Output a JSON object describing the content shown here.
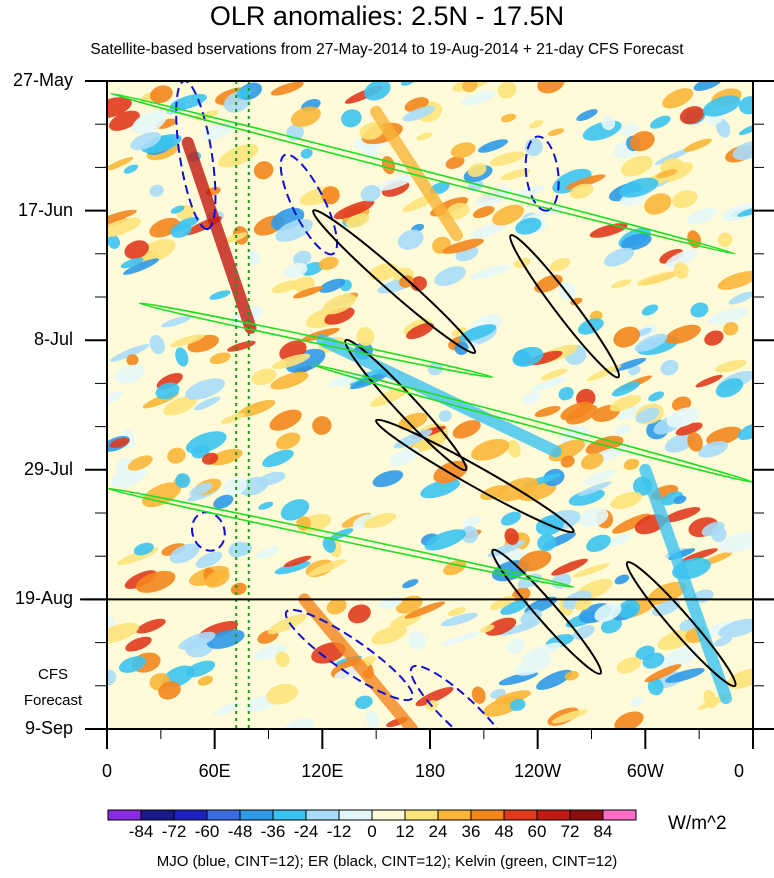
{
  "chart_data": {
    "type": "heatmap",
    "title": "OLR anomalies: 2.5N - 17.5N",
    "subtitle": "Satellite-based bservations from 27-May-2014 to 19-Aug-2014 + 21-day CFS Forecast",
    "x_ticks": [
      "0",
      "60E",
      "120E",
      "180",
      "120W",
      "60W",
      "0"
    ],
    "x_tick_values": [
      0,
      60,
      120,
      180,
      240,
      300,
      360
    ],
    "y_ticks": [
      "27-May",
      "17-Jun",
      "8-Jul",
      "29-Jul",
      "19-Aug",
      "9-Sep"
    ],
    "y_tick_values": [
      0,
      21,
      42,
      63,
      84,
      105
    ],
    "xlim": [
      0,
      360
    ],
    "ylim": [
      0,
      105
    ],
    "observation_end": "19-Aug",
    "forecast_label": [
      "CFS",
      "Forecast"
    ],
    "reference_lines_lon": [
      72,
      79
    ],
    "colorbar": {
      "units": "W/m^2",
      "levels": [
        "-84",
        "-72",
        "-60",
        "-48",
        "-36",
        "-24",
        "-12",
        "0",
        "12",
        "24",
        "36",
        "48",
        "60",
        "72",
        "84"
      ],
      "colors": [
        "#8a2be2",
        "#1a1a8c",
        "#2020c0",
        "#3a6ee0",
        "#2e9ae8",
        "#3cc3f0",
        "#a8dcf8",
        "#e4f7f8",
        "#fffbd8",
        "#fde37a",
        "#f9b638",
        "#f4861e",
        "#e03a1e",
        "#c21a12",
        "#8a1010",
        "#ff6ec7"
      ]
    },
    "filaments": [
      {
        "lon": [
          300,
          345
        ],
        "day": [
          63,
          100
        ],
        "value": -36
      },
      {
        "lon": [
          120,
          250
        ],
        "day": [
          42,
          60
        ],
        "value": -36
      },
      {
        "lon": [
          45,
          80
        ],
        "day": [
          10,
          40
        ],
        "value": 60
      },
      {
        "lon": [
          110,
          170
        ],
        "day": [
          84,
          105
        ],
        "value": 36
      },
      {
        "lon": [
          150,
          195
        ],
        "day": [
          5,
          25
        ],
        "value": 24
      }
    ],
    "contours": {
      "mjo": {
        "color": "#1010d0",
        "label": "MJO (blue, CINT=12)"
      },
      "er": {
        "color": "#000000",
        "label": "ER (black, CINT=12)"
      },
      "kelvin": {
        "color": "#22dd22",
        "label": "Kelvin (green, CINT=12)"
      }
    },
    "contour_groups": [
      {
        "type": "mjo",
        "lines": [
          {
            "lon": [
              43,
              56
            ],
            "day": [
              0,
              24
            ]
          },
          {
            "lon": [
              99,
              126
            ],
            "day": [
              12,
              28
            ]
          },
          {
            "lon": [
              240,
              245
            ],
            "day": [
              9,
              21
            ]
          },
          {
            "lon": [
              53,
              60
            ],
            "day": [
              70,
              76
            ]
          },
          {
            "lon": [
              100,
              170
            ],
            "day": [
              86,
              100
            ]
          },
          {
            "lon": [
              170,
              225
            ],
            "day": [
              95,
              110
            ]
          }
        ]
      },
      {
        "type": "er",
        "lines": [
          {
            "lon": [
              115,
              205
            ],
            "day": [
              21,
              44
            ]
          },
          {
            "lon": [
              133,
              200
            ],
            "day": [
              42,
              63
            ]
          },
          {
            "lon": [
              150,
              260
            ],
            "day": [
              55,
              73
            ]
          },
          {
            "lon": [
              225,
              285
            ],
            "day": [
              25,
              48
            ]
          },
          {
            "lon": [
              290,
              350
            ],
            "day": [
              78,
              98
            ]
          },
          {
            "lon": [
              215,
              275
            ],
            "day": [
              76,
              96
            ]
          }
        ]
      },
      {
        "type": "kelvin",
        "lines": [
          {
            "lon": [
              2,
              350
            ],
            "day": [
              2,
              28
            ]
          },
          {
            "lon": [
              18,
              215
            ],
            "day": [
              36,
              48
            ]
          },
          {
            "lon": [
              115,
              360
            ],
            "day": [
              46,
              65
            ]
          },
          {
            "lon": [
              0,
              260
            ],
            "day": [
              66,
              82
            ]
          }
        ]
      }
    ],
    "footer": "MJO (blue, CINT=12); ER (black, CINT=12); Kelvin (green, CINT=12)"
  }
}
